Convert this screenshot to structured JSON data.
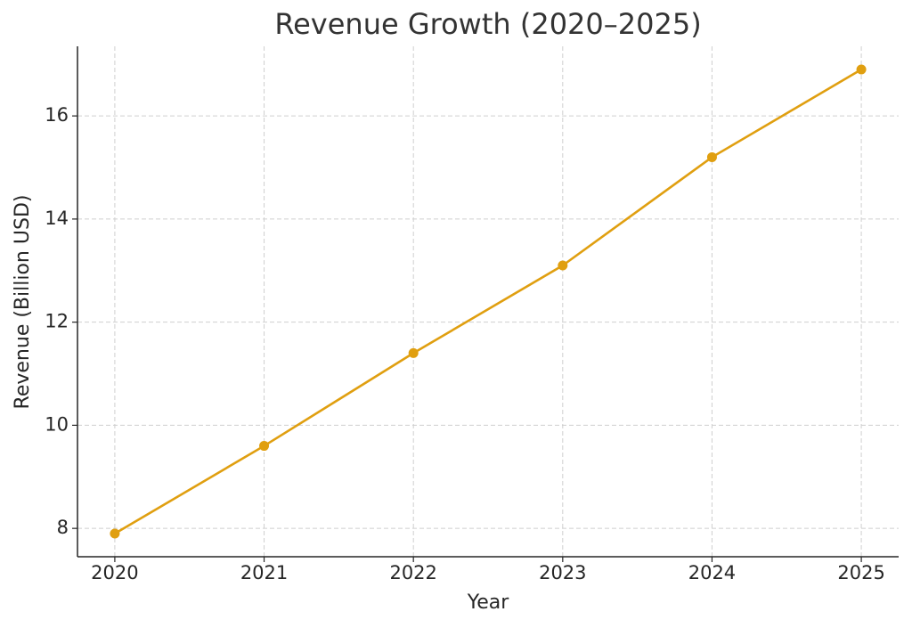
{
  "chart_data": {
    "type": "line",
    "title": "Revenue Growth (2020–2025)",
    "x_label": "Year",
    "y_label": "Revenue (Billion USD)",
    "x": [
      2020,
      2021,
      2022,
      2023,
      2024,
      2025
    ],
    "values": [
      7.9,
      9.6,
      11.4,
      13.1,
      15.2,
      16.9
    ],
    "color": "#e09f10",
    "xlim": [
      2019.75,
      2025.25
    ],
    "xticks": [
      2020,
      2021,
      2022,
      2023,
      2024,
      2025
    ],
    "ylim": [
      7.45,
      17.35
    ],
    "yticks": [
      8,
      10,
      12,
      14,
      16
    ],
    "grid": true
  }
}
